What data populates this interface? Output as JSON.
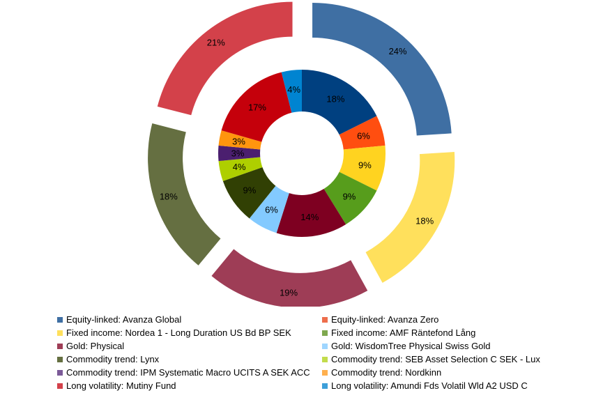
{
  "chart_data": {
    "type": "pie",
    "title": "",
    "outer_ring": {
      "slices": [
        {
          "value": 24,
          "label": "24%",
          "color": "#3f6fa3"
        },
        {
          "value": 18,
          "label": "18%",
          "color": "#ffe05c"
        },
        {
          "value": 19,
          "label": "19%",
          "color": "#9e3d56"
        },
        {
          "value": 18,
          "label": "18%",
          "color": "#656f41"
        },
        {
          "value": 21,
          "label": "21%",
          "color": "#d3414a"
        }
      ]
    },
    "inner_ring": {
      "slices": [
        {
          "value": 18,
          "label": "18%",
          "color": "#004080",
          "label_color": "#ffffff"
        },
        {
          "value": 6,
          "label": "6%",
          "color": "#ff4e10"
        },
        {
          "value": 9,
          "label": "9%",
          "color": "#ffd320"
        },
        {
          "value": 9,
          "label": "9%",
          "color": "#579d1c"
        },
        {
          "value": 14,
          "label": "14%",
          "color": "#7e0021"
        },
        {
          "value": 6,
          "label": "6%",
          "color": "#83caff"
        },
        {
          "value": 9,
          "label": "9%",
          "color": "#314004"
        },
        {
          "value": 4,
          "label": "4%",
          "color": "#aecf00"
        },
        {
          "value": 3,
          "label": "3%",
          "color": "#4b1f6f"
        },
        {
          "value": 3,
          "label": "3%",
          "color": "#ff950e"
        },
        {
          "value": 17,
          "label": "17%",
          "color": "#c5000b"
        },
        {
          "value": 4,
          "label": "4%",
          "color": "#0084d1"
        }
      ]
    },
    "legend": {
      "placement": "bottom",
      "entries": [
        {
          "label": "Equity-linked: Avanza Global",
          "color": "#3f6fa3"
        },
        {
          "label": "Equity-linked: Avanza Zero",
          "color": "#ee6e4c"
        },
        {
          "label": "Fixed income: Nordea 1 - Long Duration US Bd BP SEK",
          "color": "#ffe05c"
        },
        {
          "label": "Fixed income: AMF Räntefond Lång",
          "color": "#7fa84f"
        },
        {
          "label": "Gold: Physical",
          "color": "#9e3d56"
        },
        {
          "label": "Gold: WisdomTree Physical Swiss Gold",
          "color": "#9fd6ff"
        },
        {
          "label": "Commodity trend: Lynx",
          "color": "#656f41"
        },
        {
          "label": "Commodity trend: SEB Asset Selection C SEK - Lux",
          "color": "#c3dc4c"
        },
        {
          "label": "Commodity trend: IPM Systematic Macro UCITS A SEK ACC",
          "color": "#7b5a98"
        },
        {
          "label": "Commodity trend: Nordkinn",
          "color": "#ffb04e"
        },
        {
          "label": "Long volatility: Mutiny Fund",
          "color": "#d3414a"
        },
        {
          "label": "Long volatility: Amundi Fds Volatil Wld A2 USD C",
          "color": "#3d9fd9"
        }
      ]
    }
  }
}
